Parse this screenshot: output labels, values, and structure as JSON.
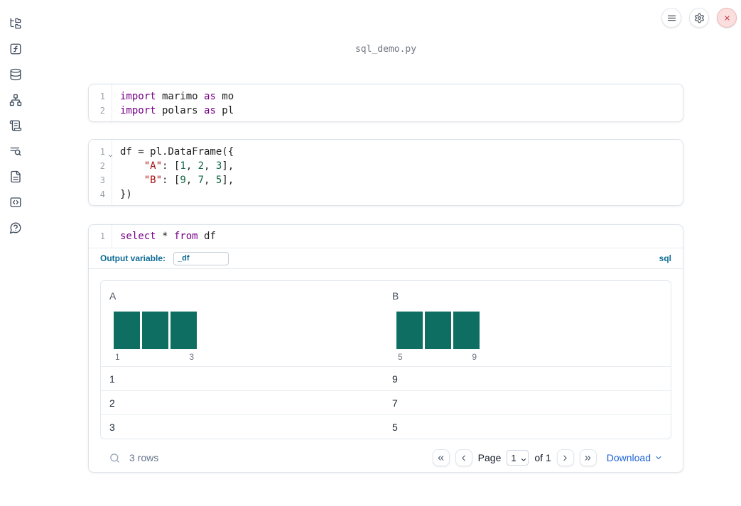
{
  "app": {
    "title": "sql_demo.py"
  },
  "colors": {
    "accent_blue": "#0e6b96",
    "link_blue": "#2066d2",
    "histogram_bar": "#0e6e62",
    "keyword": "#770088",
    "string": "#aa1111",
    "number": "#116644",
    "close_red": "#c0464d"
  },
  "sidebar": {
    "items": [
      {
        "icon": "file-tree"
      },
      {
        "icon": "function-square"
      },
      {
        "icon": "database"
      },
      {
        "icon": "network-graph"
      },
      {
        "icon": "scroll-text"
      },
      {
        "icon": "list-search"
      },
      {
        "icon": "file-text"
      },
      {
        "icon": "code-square"
      },
      {
        "icon": "help-chat"
      }
    ]
  },
  "window_controls": {
    "icons": [
      "menu",
      "settings",
      "close"
    ]
  },
  "cells": [
    {
      "lines": [
        {
          "num": "1",
          "tokens": [
            [
              "kw",
              "import"
            ],
            [
              "pl",
              " marimo "
            ],
            [
              "kw",
              "as"
            ],
            [
              "pl",
              " mo"
            ]
          ]
        },
        {
          "num": "2",
          "tokens": [
            [
              "kw",
              "import"
            ],
            [
              "pl",
              " polars "
            ],
            [
              "kw",
              "as"
            ],
            [
              "pl",
              " pl"
            ]
          ]
        }
      ]
    },
    {
      "lines": [
        {
          "num": "1",
          "fold": true,
          "tokens": [
            [
              "pl",
              "df = pl.DataFrame({"
            ]
          ]
        },
        {
          "num": "2",
          "tokens": [
            [
              "pl",
              "    "
            ],
            [
              "str",
              "\"A\""
            ],
            [
              "pl",
              ": ["
            ],
            [
              "num",
              "1"
            ],
            [
              "pl",
              ", "
            ],
            [
              "num",
              "2"
            ],
            [
              "pl",
              ", "
            ],
            [
              "num",
              "3"
            ],
            [
              "pl",
              "],"
            ]
          ]
        },
        {
          "num": "3",
          "tokens": [
            [
              "pl",
              "    "
            ],
            [
              "str",
              "\"B\""
            ],
            [
              "pl",
              ": ["
            ],
            [
              "num",
              "9"
            ],
            [
              "pl",
              ", "
            ],
            [
              "num",
              "7"
            ],
            [
              "pl",
              ", "
            ],
            [
              "num",
              "5"
            ],
            [
              "pl",
              "],"
            ]
          ]
        },
        {
          "num": "4",
          "tokens": [
            [
              "pl",
              "})"
            ]
          ]
        }
      ]
    },
    {
      "lines": [
        {
          "num": "1",
          "tokens": [
            [
              "kw",
              "select"
            ],
            [
              "pl",
              " * "
            ],
            [
              "kw",
              "from"
            ],
            [
              "pl",
              " df"
            ]
          ]
        }
      ]
    }
  ],
  "sql_cell": {
    "output_variable_label": "Output variable:",
    "output_variable_value": "_df",
    "language_badge": "sql"
  },
  "table": {
    "columns": [
      {
        "name": "A",
        "histogram": {
          "bars": [
            1,
            1,
            1
          ],
          "min_label": "1",
          "max_label": "3"
        }
      },
      {
        "name": "B",
        "histogram": {
          "bars": [
            1,
            1,
            1
          ],
          "min_label": "5",
          "max_label": "9"
        }
      }
    ],
    "rows": [
      [
        "1",
        "9"
      ],
      [
        "2",
        "7"
      ],
      [
        "3",
        "5"
      ]
    ],
    "footer": {
      "row_count": "3 rows",
      "page_label": "Page",
      "page_value": "1",
      "of_label": "of 1",
      "download_label": "Download"
    }
  }
}
